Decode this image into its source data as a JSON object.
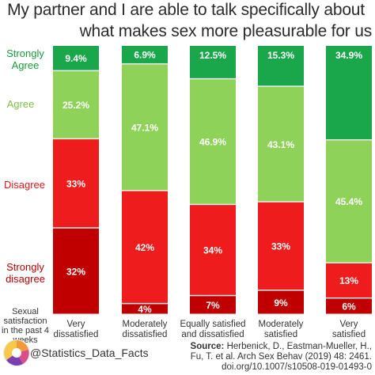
{
  "title_line1": "My partner and I are able to talk specifically about",
  "title_line2": "what makes sex more pleasurable for us",
  "response_labels": {
    "strongly_agree": "Strongly Agree",
    "agree": "Agree",
    "disagree": "Disagree",
    "strongly_disagree": "Strongly disagree"
  },
  "x_axis_label": "Sexual satisfaction in the past 4 weeks",
  "source_prefix": "Source:",
  "source_text": "Herbenick, D., Eastman-Mueller, H.,",
  "source_line2": "Fu, T. et al. Arch Sex Behav (2019) 48: 2461.",
  "source_line3": "doi.org/10.1007/s10508-019-01493-0",
  "handle": "@Statistics_Data_Facts",
  "colors": {
    "strongly_agree": "#1aa64a",
    "agree": "#8fd25a",
    "disagree": "#ee1c1c",
    "strongly_disagree": "#c00000",
    "label_strongly_agree": "#1a9a3c",
    "label_agree": "#7cc24a",
    "label_disagree": "#e01818",
    "label_strongly_disagree": "#b50000"
  },
  "chart_data": {
    "type": "bar",
    "stacked": true,
    "normalized": true,
    "categories": [
      "Very dissatisfied",
      "Moderately dissatisfied",
      "Equally satisfied and dissatisfied",
      "Moderately satisfied",
      "Very satisfied"
    ],
    "series": [
      {
        "name": "Strongly disagree",
        "values": [
          32,
          4,
          7,
          9,
          6
        ],
        "labels": [
          "32%",
          "4%",
          "7%",
          "9%",
          "6%"
        ]
      },
      {
        "name": "Disagree",
        "values": [
          33,
          42,
          34,
          33,
          13
        ],
        "labels": [
          "33%",
          "42%",
          "34%",
          "33%",
          "13%"
        ]
      },
      {
        "name": "Agree",
        "values": [
          25.2,
          47.1,
          46.9,
          43.1,
          45.4
        ],
        "labels": [
          "25.2%",
          "47.1%",
          "46.9%",
          "43.1%",
          "45.4%"
        ]
      },
      {
        "name": "Strongly Agree",
        "values": [
          9.4,
          6.9,
          12.5,
          15.3,
          34.9
        ],
        "labels": [
          "9.4%",
          "6.9%",
          "12.5%",
          "15.3%",
          "34.9%"
        ]
      }
    ]
  }
}
